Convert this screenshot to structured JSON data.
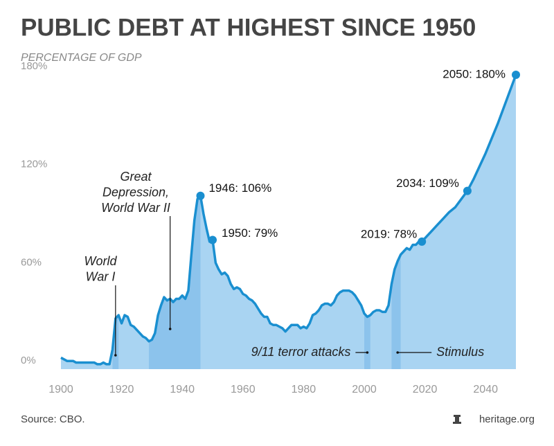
{
  "chart_data": {
    "type": "area",
    "title": "PUBLIC DEBT AT HIGHEST SINCE 1950",
    "subtitle": "PERCENTAGE OF GDP",
    "source": "Source: CBO.",
    "brand": "heritage.org",
    "color": "#1a8fd0",
    "fill_color": "#a9d4f2",
    "band_color": "#8cc3ec",
    "x": [
      1900,
      1901,
      1902,
      1903,
      1904,
      1905,
      1906,
      1907,
      1908,
      1909,
      1910,
      1911,
      1912,
      1913,
      1914,
      1915,
      1916,
      1917,
      1918,
      1919,
      1920,
      1921,
      1922,
      1923,
      1924,
      1925,
      1926,
      1927,
      1928,
      1929,
      1930,
      1931,
      1932,
      1933,
      1934,
      1935,
      1936,
      1937,
      1938,
      1939,
      1940,
      1941,
      1942,
      1943,
      1944,
      1945,
      1946,
      1947,
      1948,
      1949,
      1950,
      1951,
      1952,
      1953,
      1954,
      1955,
      1956,
      1957,
      1958,
      1959,
      1960,
      1961,
      1962,
      1963,
      1964,
      1965,
      1966,
      1967,
      1968,
      1969,
      1970,
      1971,
      1972,
      1973,
      1974,
      1975,
      1976,
      1977,
      1978,
      1979,
      1980,
      1981,
      1982,
      1983,
      1984,
      1985,
      1986,
      1987,
      1988,
      1989,
      1990,
      1991,
      1992,
      1993,
      1994,
      1995,
      1996,
      1997,
      1998,
      1999,
      2000,
      2001,
      2002,
      2003,
      2004,
      2005,
      2006,
      2007,
      2008,
      2009,
      2010,
      2011,
      2012,
      2013,
      2014,
      2015,
      2016,
      2017,
      2018,
      2019,
      2020,
      2022,
      2024,
      2026,
      2028,
      2030,
      2032,
      2034,
      2036,
      2038,
      2040,
      2042,
      2044,
      2046,
      2048,
      2050
    ],
    "values": [
      7,
      6,
      5,
      5,
      5,
      4,
      4,
      4,
      4,
      4,
      4,
      4,
      3,
      3,
      4,
      3,
      3,
      12,
      31,
      33,
      28,
      33,
      32,
      27,
      26,
      24,
      22,
      20,
      19,
      17,
      18,
      22,
      33,
      39,
      44,
      42,
      43,
      41,
      43,
      43,
      45,
      43,
      48,
      70,
      91,
      104,
      106,
      95,
      86,
      78,
      79,
      65,
      61,
      58,
      59,
      57,
      52,
      49,
      50,
      49,
      46,
      45,
      43,
      42,
      40,
      37,
      34,
      32,
      32,
      28,
      27,
      27,
      26,
      25,
      23,
      25,
      27,
      27,
      27,
      25,
      26,
      25,
      28,
      33,
      34,
      36,
      39,
      40,
      40,
      39,
      41,
      45,
      47,
      48,
      48,
      48,
      47,
      45,
      42,
      39,
      34,
      32,
      33,
      35,
      36,
      36,
      35,
      35,
      39,
      52,
      61,
      66,
      70,
      72,
      74,
      73,
      76,
      76,
      78,
      78,
      80,
      84,
      88,
      92,
      96,
      99,
      104,
      109,
      116,
      124,
      132,
      141,
      150,
      160,
      170,
      180
    ],
    "xlim": [
      1900,
      2050
    ],
    "xticks": [
      1900,
      1920,
      1940,
      1960,
      1980,
      2000,
      2020,
      2040
    ],
    "ylim": [
      0,
      180
    ],
    "yticks": [
      {
        "value": 0,
        "label": "0%"
      },
      {
        "value": 60,
        "label": "60%"
      },
      {
        "value": 120,
        "label": "120%"
      },
      {
        "value": 180,
        "label": "180%"
      }
    ],
    "bands": [
      [
        1917,
        1919
      ],
      [
        1929,
        1946
      ],
      [
        2000,
        2002
      ],
      [
        2009,
        2012
      ]
    ],
    "point_labels": [
      {
        "x": 1946,
        "y": 106,
        "label": "1946: 106%"
      },
      {
        "x": 1950,
        "y": 79,
        "label": "1950: 79%"
      },
      {
        "x": 2019,
        "y": 78,
        "label": "2019: 78%"
      },
      {
        "x": 2034,
        "y": 109,
        "label": "2034: 109%"
      },
      {
        "x": 2050,
        "y": 180,
        "label": "2050: 180%"
      }
    ],
    "annotations": [
      {
        "x": 1918,
        "text": [
          "World",
          "War I"
        ]
      },
      {
        "x": 1936,
        "text": [
          "Great",
          "Depression,",
          "World War II"
        ]
      },
      {
        "x": 2001,
        "text": [
          "9/11 terror attacks"
        ]
      },
      {
        "x": 2011,
        "text": [
          "Stimulus"
        ]
      }
    ]
  }
}
